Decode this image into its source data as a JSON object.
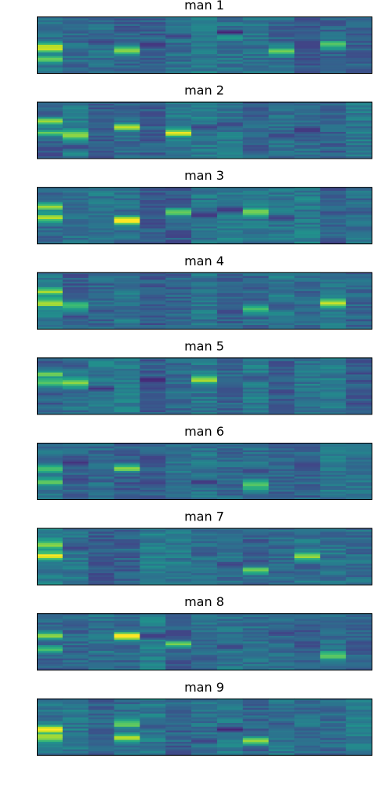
{
  "figure": {
    "background": "#ffffff",
    "colormap": "viridis"
  },
  "chart_data": [
    {
      "type": "heatmap",
      "title": "man 1",
      "columns": 13,
      "rows": 30,
      "colormap": "viridis",
      "xlabel": "",
      "ylabel": "",
      "ticks": "none",
      "hot_spots": [
        [
          0,
          0.75,
          0.35
        ],
        [
          0,
          0.55,
          0.6
        ],
        [
          3,
          0.6,
          0.55
        ],
        [
          7,
          0.35,
          0.25
        ],
        [
          9,
          0.62,
          0.45
        ],
        [
          11,
          0.5,
          0.45
        ]
      ],
      "dark_spots": [
        [
          7,
          0.28,
          0.1
        ],
        [
          4,
          0.5,
          0.15
        ],
        [
          5,
          0.35,
          0.2
        ],
        [
          2,
          0.45,
          0.2
        ],
        [
          10,
          0.55,
          0.2
        ]
      ]
    },
    {
      "type": "heatmap",
      "title": "man 2",
      "columns": 13,
      "rows": 30,
      "colormap": "viridis",
      "xlabel": "",
      "ylabel": "",
      "ticks": "none",
      "hot_spots": [
        [
          0,
          0.55,
          0.4
        ],
        [
          0,
          0.35,
          0.5
        ],
        [
          3,
          0.45,
          0.5
        ],
        [
          5,
          0.55,
          0.5
        ],
        [
          1,
          0.6,
          0.45
        ]
      ],
      "dark_spots": [
        [
          1,
          0.8,
          0.2
        ],
        [
          10,
          0.5,
          0.15
        ],
        [
          9,
          0.6,
          0.2
        ],
        [
          7,
          0.4,
          0.2
        ],
        [
          6,
          0.45,
          0.2
        ]
      ]
    },
    {
      "type": "heatmap",
      "title": "man 3",
      "columns": 13,
      "rows": 30,
      "colormap": "viridis",
      "xlabel": "",
      "ylabel": "",
      "ticks": "none",
      "hot_spots": [
        [
          0,
          0.55,
          0.5
        ],
        [
          0,
          0.35,
          0.45
        ],
        [
          3,
          0.6,
          0.75
        ],
        [
          5,
          0.45,
          0.5
        ],
        [
          8,
          0.45,
          0.45
        ]
      ],
      "dark_spots": [
        [
          6,
          0.5,
          0.15
        ],
        [
          7,
          0.4,
          0.15
        ],
        [
          9,
          0.55,
          0.2
        ],
        [
          4,
          0.65,
          0.2
        ],
        [
          12,
          0.45,
          0.25
        ]
      ]
    },
    {
      "type": "heatmap",
      "title": "man 4",
      "columns": 13,
      "rows": 30,
      "colormap": "viridis",
      "xlabel": "",
      "ylabel": "",
      "ticks": "none",
      "hot_spots": [
        [
          0,
          0.55,
          0.45
        ],
        [
          0,
          0.35,
          0.4
        ],
        [
          1,
          0.6,
          0.45
        ],
        [
          8,
          0.65,
          0.45
        ],
        [
          11,
          0.55,
          0.45
        ]
      ],
      "dark_spots": [
        [
          7,
          0.7,
          0.2
        ],
        [
          4,
          0.45,
          0.25
        ],
        [
          1,
          0.35,
          0.25
        ],
        [
          9,
          0.6,
          0.25
        ]
      ]
    },
    {
      "type": "heatmap",
      "title": "man 5",
      "columns": 13,
      "rows": 30,
      "colormap": "viridis",
      "xlabel": "",
      "ylabel": "",
      "ticks": "none",
      "hot_spots": [
        [
          0,
          0.45,
          0.5
        ],
        [
          0,
          0.3,
          0.4
        ],
        [
          1,
          0.45,
          0.45
        ],
        [
          6,
          0.4,
          0.45
        ]
      ],
      "dark_spots": [
        [
          2,
          0.55,
          0.15
        ],
        [
          4,
          0.4,
          0.1
        ],
        [
          1,
          0.15,
          0.25
        ],
        [
          8,
          0.35,
          0.25
        ],
        [
          7,
          0.6,
          0.25
        ]
      ]
    },
    {
      "type": "heatmap",
      "title": "man 6",
      "columns": 13,
      "rows": 30,
      "colormap": "viridis",
      "xlabel": "",
      "ylabel": "",
      "ticks": "none",
      "hot_spots": [
        [
          0,
          0.45,
          0.4
        ],
        [
          0,
          0.7,
          0.4
        ],
        [
          3,
          0.45,
          0.5
        ],
        [
          8,
          0.75,
          0.45
        ]
      ],
      "dark_spots": [
        [
          1,
          0.35,
          0.15
        ],
        [
          1,
          0.65,
          0.2
        ],
        [
          6,
          0.7,
          0.15
        ],
        [
          10,
          0.4,
          0.2
        ],
        [
          8,
          0.5,
          0.2
        ]
      ]
    },
    {
      "type": "heatmap",
      "title": "man 7",
      "columns": 13,
      "rows": 30,
      "colormap": "viridis",
      "xlabel": "",
      "ylabel": "",
      "ticks": "none",
      "hot_spots": [
        [
          0,
          0.5,
          0.55
        ],
        [
          0,
          0.3,
          0.45
        ],
        [
          8,
          0.75,
          0.45
        ],
        [
          10,
          0.5,
          0.45
        ]
      ],
      "dark_spots": [
        [
          1,
          0.35,
          0.2
        ],
        [
          7,
          0.65,
          0.2
        ],
        [
          6,
          0.45,
          0.25
        ],
        [
          10,
          0.7,
          0.25
        ],
        [
          2,
          0.55,
          0.25
        ]
      ]
    },
    {
      "type": "heatmap",
      "title": "man 8",
      "columns": 13,
      "rows": 30,
      "colormap": "viridis",
      "xlabel": "",
      "ylabel": "",
      "ticks": "none",
      "hot_spots": [
        [
          0,
          0.4,
          0.45
        ],
        [
          0,
          0.65,
          0.35
        ],
        [
          3,
          0.4,
          0.8
        ],
        [
          5,
          0.55,
          0.45
        ],
        [
          11,
          0.75,
          0.45
        ]
      ],
      "dark_spots": [
        [
          4,
          0.4,
          0.15
        ],
        [
          7,
          0.6,
          0.2
        ],
        [
          9,
          0.35,
          0.2
        ],
        [
          6,
          0.8,
          0.25
        ],
        [
          1,
          0.15,
          0.3
        ]
      ]
    },
    {
      "type": "heatmap",
      "title": "man 9",
      "columns": 13,
      "rows": 30,
      "colormap": "viridis",
      "xlabel": "",
      "ylabel": "",
      "ticks": "none",
      "hot_spots": [
        [
          0,
          0.55,
          0.6
        ],
        [
          0,
          0.7,
          0.55
        ],
        [
          3,
          0.7,
          0.55
        ],
        [
          8,
          0.75,
          0.45
        ],
        [
          3,
          0.45,
          0.45
        ]
      ],
      "dark_spots": [
        [
          7,
          0.55,
          0.1
        ],
        [
          6,
          0.75,
          0.2
        ],
        [
          4,
          0.5,
          0.25
        ],
        [
          9,
          0.45,
          0.25
        ],
        [
          2,
          0.6,
          0.25
        ]
      ]
    }
  ]
}
